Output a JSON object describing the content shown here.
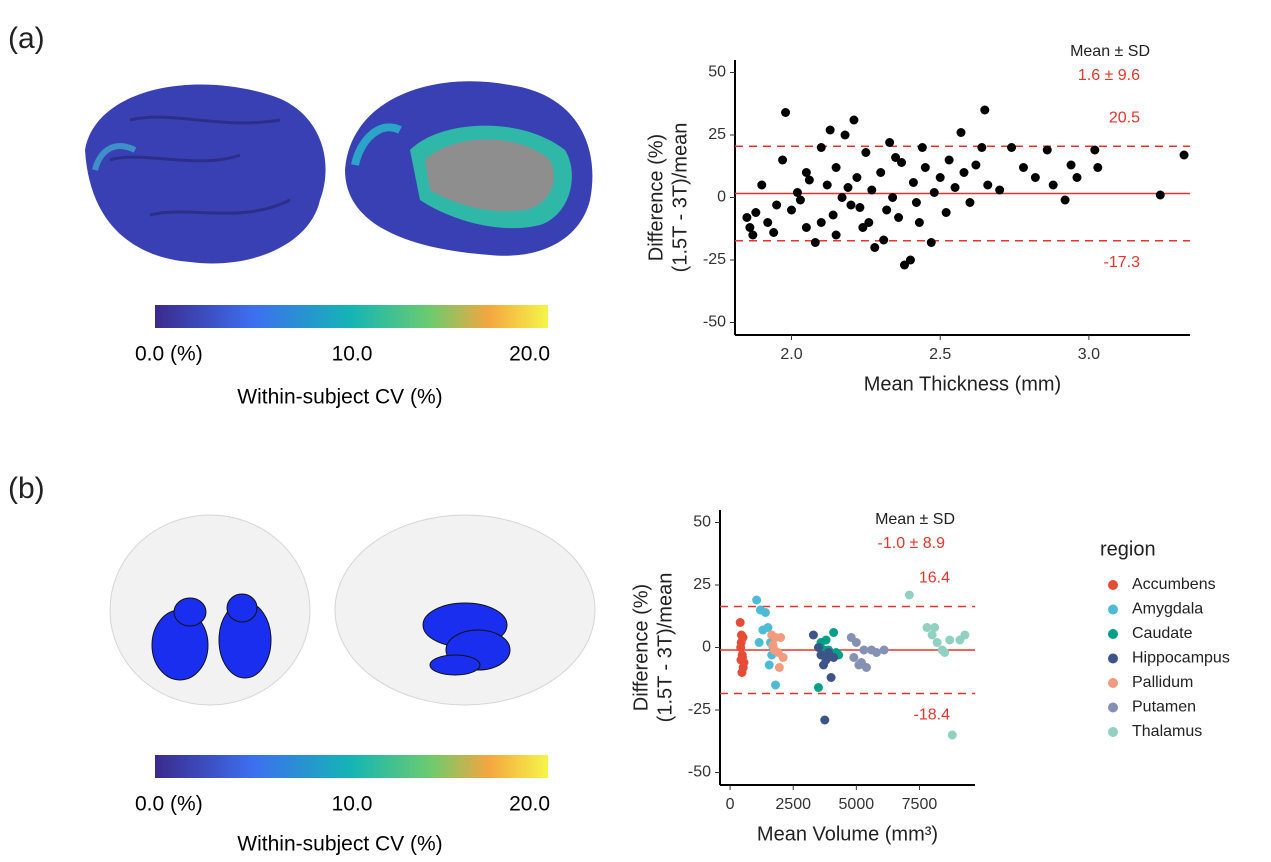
{
  "figure": {
    "panel_labels": [
      "(a)",
      "(b)"
    ],
    "colorbars": [
      {
        "ticks": [
          "0.0 (%)",
          "10.0",
          "20.0"
        ],
        "title": "Within-subject CV (%)"
      },
      {
        "ticks": [
          "0.0 (%)",
          "10.0",
          "20.0"
        ],
        "title": "Within-subject CV (%)"
      }
    ]
  },
  "chart_data": [
    {
      "type": "scatter",
      "xlabel": "Mean Thickness (mm)",
      "ylabel": [
        "Difference (%)",
        "(1.5T - 3T)/mean"
      ],
      "xlim": [
        1.81,
        3.34
      ],
      "xticks": [
        {
          "value": 2,
          "label": "2.0"
        },
        2.5,
        {
          "value": 3,
          "label": "3.0"
        }
      ],
      "ylim": [
        -55,
        55
      ],
      "yticks": [
        -50,
        -25,
        0,
        25,
        50
      ],
      "summary_title": "Mean ± SD",
      "summary": "1.6 ± 9.6",
      "hlines": [
        {
          "value": 1.6,
          "style": "solid"
        },
        {
          "value": 20.5,
          "style": "dashed"
        },
        {
          "value": -17.3,
          "style": "dashed"
        }
      ],
      "line_color": "#e8342a",
      "series": [
        {
          "color": "#000000",
          "x": [
            1.85,
            1.86,
            1.88,
            1.9,
            1.87,
            1.92,
            1.95,
            1.97,
            1.98,
            2.0,
            2.02,
            2.05,
            2.05,
            2.08,
            2.1,
            2.12,
            2.14,
            2.15,
            2.17,
            2.18,
            2.2,
            2.21,
            2.22,
            2.24,
            2.25,
            2.27,
            2.28,
            2.3,
            2.32,
            2.33,
            2.34,
            2.36,
            2.37,
            2.38,
            2.4,
            2.41,
            2.42,
            2.44,
            2.45,
            2.47,
            2.48,
            2.5,
            2.52,
            2.53,
            2.55,
            2.57,
            2.58,
            2.6,
            2.62,
            2.64,
            2.65,
            2.66,
            2.7,
            2.74,
            2.78,
            2.82,
            2.86,
            2.88,
            2.92,
            2.94,
            2.96,
            3.02,
            3.03,
            3.24,
            3.32,
            2.1,
            2.15,
            2.26,
            2.35,
            2.19,
            2.03,
            2.13,
            2.31,
            2.43,
            1.94,
            2.06,
            2.23
          ],
          "values": [
            -8,
            -12,
            -6,
            5,
            -15,
            -10,
            -3,
            15,
            34,
            -5,
            2,
            10,
            -12,
            -18,
            20,
            5,
            -7,
            12,
            0,
            25,
            -3,
            31,
            8,
            -12,
            18,
            3,
            -20,
            10,
            -5,
            22,
            0,
            -8,
            14,
            -27,
            -25,
            6,
            -2,
            20,
            12,
            -18,
            2,
            8,
            -6,
            15,
            4,
            26,
            10,
            -2,
            13,
            20,
            35,
            5,
            3,
            20,
            12,
            8,
            19,
            5,
            -1,
            13,
            8,
            19,
            12,
            1,
            17,
            -10,
            -15,
            -10,
            16,
            4,
            -1,
            27,
            -17,
            -10,
            -14,
            7,
            -4
          ]
        }
      ]
    },
    {
      "type": "scatter",
      "xlabel": "Mean Volume (mm³)",
      "ylabel": [
        "Difference (%)",
        "(1.5T - 3T)/mean"
      ],
      "xlim": [
        -400,
        9700
      ],
      "xticks": [
        0,
        2500,
        5000,
        7500
      ],
      "ylim": [
        -55,
        55
      ],
      "yticks": [
        -50,
        -25,
        0,
        25,
        50
      ],
      "summary_title": "Mean ± SD",
      "summary": "-1.0 ± 8.9",
      "hlines": [
        {
          "value": -1.0,
          "style": "solid"
        },
        {
          "value": 16.4,
          "style": "dashed"
        },
        {
          "value": -18.4,
          "style": "dashed"
        }
      ],
      "line_color": "#e8342a",
      "legend_title": "region",
      "series": [
        {
          "name": "Accumbens",
          "color": "#e64b35",
          "x": [
            400,
            450,
            500,
            420,
            480,
            430,
            520,
            470,
            550,
            440,
            510,
            490
          ],
          "values": [
            10,
            5,
            4,
            0,
            -3,
            -5,
            -8,
            -10,
            -6,
            2,
            4,
            -4
          ]
        },
        {
          "name": "Amygdala",
          "color": "#4dbbd5",
          "x": [
            1050,
            1200,
            1400,
            1500,
            1300,
            1600,
            1700,
            1550,
            1800,
            1150,
            1650
          ],
          "values": [
            19,
            15,
            14,
            8,
            7,
            2,
            0,
            -7,
            -15,
            2,
            -3
          ]
        },
        {
          "name": "Caudate",
          "color": "#00a087",
          "x": [
            3500,
            3600,
            3800,
            4100,
            3900,
            4000,
            4200,
            3700,
            4300
          ],
          "values": [
            -16,
            2,
            3,
            6,
            -1,
            -3,
            -2,
            -1,
            -3
          ]
        },
        {
          "name": "Hippocampus",
          "color": "#3c5488",
          "x": [
            3300,
            3500,
            3700,
            3750,
            4000,
            3800,
            3600,
            4100,
            3900
          ],
          "values": [
            5,
            0,
            -7,
            -29,
            -12,
            -5,
            -3,
            -4,
            -2
          ]
        },
        {
          "name": "Pallidum",
          "color": "#f39b7f",
          "x": [
            1650,
            1800,
            2000,
            1900,
            2100,
            1750,
            1950,
            1700
          ],
          "values": [
            5,
            4,
            4,
            -2,
            -4,
            -1,
            -8,
            1
          ]
        },
        {
          "name": "Putamen",
          "color": "#8491b4",
          "x": [
            4800,
            5000,
            5200,
            5300,
            5600,
            5800,
            6100,
            5400,
            4900,
            5100
          ],
          "values": [
            4,
            2,
            -6,
            -1,
            -1,
            -2,
            -1,
            -8,
            -4,
            -7
          ]
        },
        {
          "name": "Thalamus",
          "color": "#91d1c2",
          "x": [
            7100,
            7800,
            8100,
            8200,
            8400,
            8500,
            8700,
            8800,
            9100,
            9300,
            8000
          ],
          "values": [
            21,
            8,
            8,
            2,
            -1,
            -2,
            3,
            -35,
            3,
            5,
            5
          ]
        }
      ]
    }
  ]
}
